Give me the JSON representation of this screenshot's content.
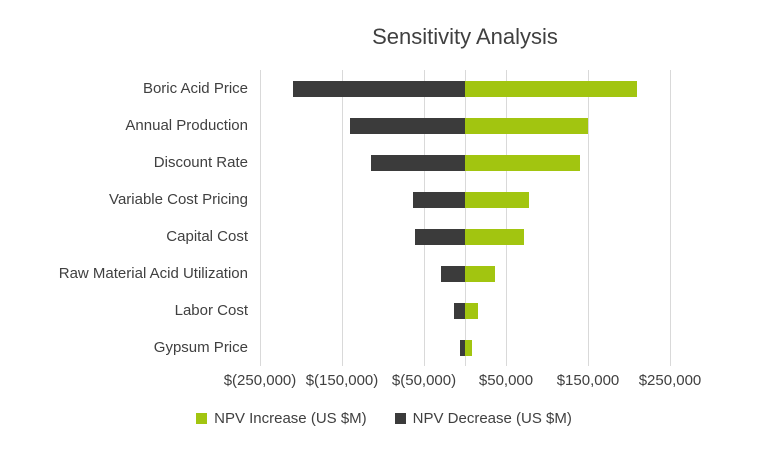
{
  "chart_data": {
    "type": "bar",
    "subtype": "tornado",
    "orientation": "horizontal",
    "title": "Sensitivity Analysis",
    "categories": [
      "Boric Acid Price",
      "Annual Production",
      "Discount Rate",
      "Variable Cost Pricing",
      "Capital Cost",
      "Raw Material Acid Utilization",
      "Labor Cost",
      "Gypsum Price"
    ],
    "series": [
      {
        "name": "NPV Increase (US $M)",
        "color": "#a2c510",
        "values": [
          210000,
          150000,
          140000,
          78000,
          72000,
          36000,
          16000,
          8000
        ]
      },
      {
        "name": "NPV Decrease (US $M)",
        "color": "#3b3b3b",
        "values": [
          -210000,
          -140000,
          -115000,
          -64000,
          -61000,
          -29000,
          -13000,
          -6000
        ]
      }
    ],
    "xlim": [
      -250000,
      250000
    ],
    "x_ticks": [
      -250000,
      -150000,
      -50000,
      50000,
      150000,
      250000
    ],
    "x_tick_labels": [
      "$(250,000)",
      "$(150,000)",
      "$(50,000)",
      "$50,000",
      "$150,000",
      "$250,000"
    ],
    "grid": true,
    "legend_position": "bottom"
  }
}
